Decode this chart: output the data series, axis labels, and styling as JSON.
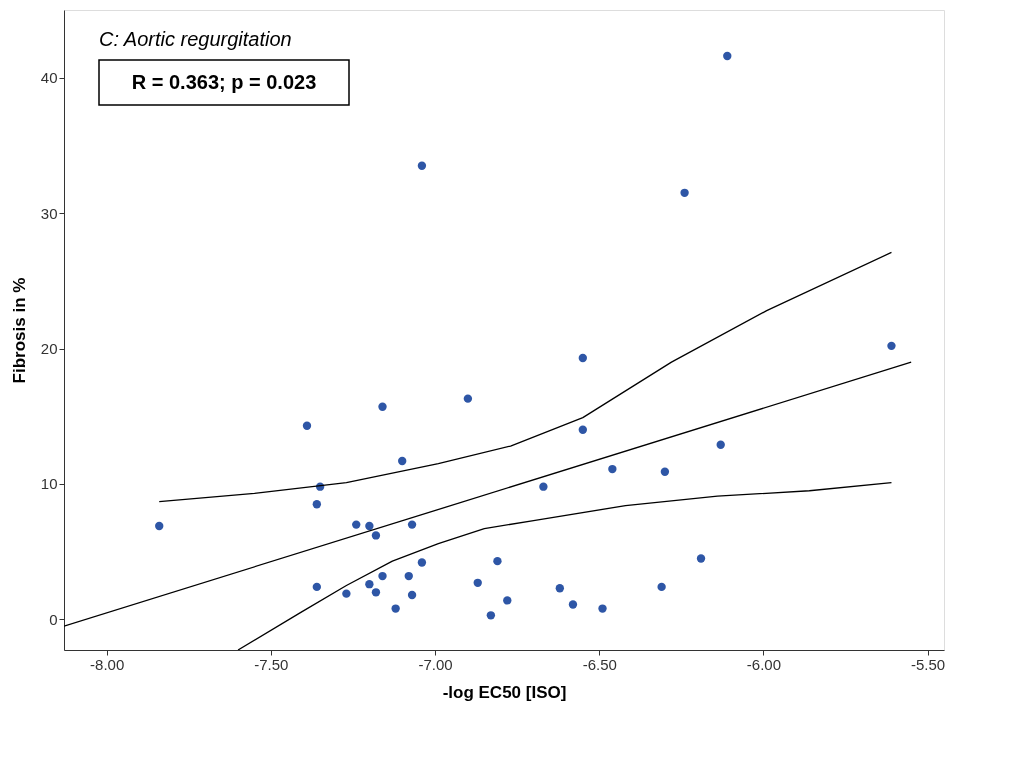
{
  "chart_data": {
    "type": "scatter",
    "xlabel": "-log EC50 [ISO]",
    "ylabel": "Fibrosis in %",
    "annotations": [
      "C: Aortic regurgitation",
      "R = 0.363; p = 0.023"
    ],
    "xlim": [
      -8.13,
      -5.45
    ],
    "ylim": [
      -2.26,
      45
    ],
    "xticks": [
      {
        "value": -8,
        "label": "-8.00"
      },
      {
        "value": -7.5,
        "label": "-7.50"
      },
      {
        "value": -7,
        "label": "-7.00"
      },
      {
        "value": -6.5,
        "label": "-6.50"
      },
      {
        "value": -6,
        "label": "-6.00"
      },
      {
        "value": -5.5,
        "label": "-5.50"
      }
    ],
    "yticks": [
      0,
      10,
      20,
      30,
      40
    ],
    "grid": false,
    "marker": "circle",
    "series": [
      {
        "color": "#2e56a6",
        "x": [
          -7.84,
          -7.39,
          -7.35,
          -7.36,
          -7.36,
          -7.27,
          -7.24,
          -7.2,
          -7.2,
          -7.18,
          -7.18,
          -7.16,
          -7.16,
          -7.1,
          -7.07,
          -7.12,
          -7.08,
          -7.07,
          -7.04,
          -7.04,
          -6.9,
          -6.87,
          -6.81,
          -6.83,
          -6.78,
          -6.67,
          -6.62,
          -6.58,
          -6.55,
          -6.55,
          -6.49,
          -6.46,
          -6.3,
          -6.31,
          -6.24,
          -6.19,
          -6.13,
          -6.11,
          -5.61
        ],
        "values": [
          6.9,
          14.3,
          9.8,
          8.5,
          2.4,
          1.9,
          7.0,
          6.9,
          2.6,
          6.2,
          2.0,
          3.2,
          15.7,
          11.7,
          7.0,
          0.8,
          3.2,
          1.8,
          4.2,
          33.5,
          16.3,
          2.7,
          4.3,
          0.3,
          1.4,
          9.8,
          2.3,
          1.1,
          19.3,
          14.0,
          0.8,
          11.1,
          10.9,
          2.4,
          31.5,
          4.5,
          12.9,
          41.6,
          20.2
        ]
      },
      {
        "type": "line",
        "color": "#000000",
        "marker": "none",
        "x": [
          -8.13,
          -5.55
        ],
        "values": [
          -0.5,
          19.0
        ]
      },
      {
        "type": "line",
        "color": "#000000",
        "marker": "none",
        "x": [
          -7.84,
          -7.55,
          -7.27,
          -6.99,
          -6.77,
          -6.55,
          -6.28,
          -5.99,
          -5.61
        ],
        "values": [
          8.7,
          9.3,
          10.1,
          11.5,
          12.8,
          14.9,
          19.0,
          22.8,
          27.1
        ]
      },
      {
        "type": "line",
        "color": "#000000",
        "marker": "none",
        "x": [
          -7.6,
          -7.41,
          -7.27,
          -7.13,
          -6.99,
          -6.85,
          -6.7,
          -6.42,
          -6.14,
          -5.86,
          -5.61
        ],
        "values": [
          -2.26,
          0.5,
          2.5,
          4.3,
          5.6,
          6.7,
          7.3,
          8.4,
          9.1,
          9.5,
          10.1
        ]
      }
    ]
  }
}
